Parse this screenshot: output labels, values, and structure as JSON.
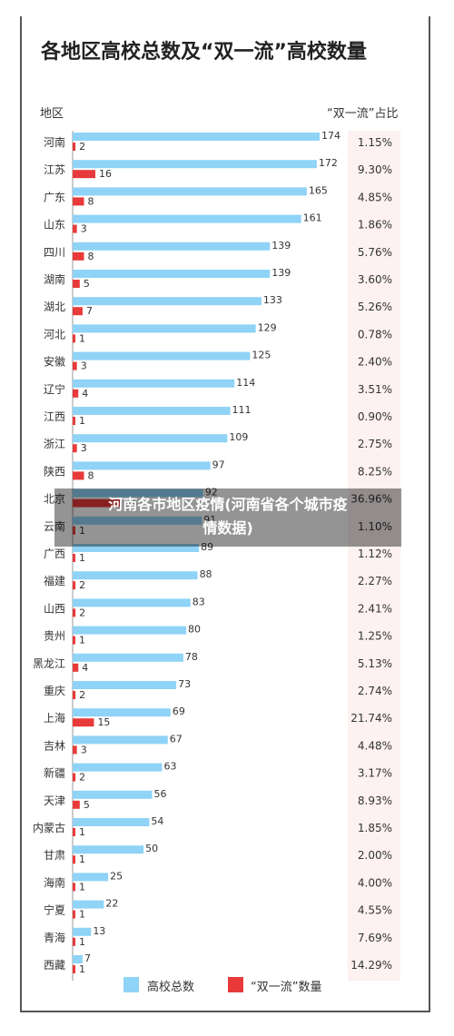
{
  "chart_data": {
    "type": "bar",
    "title": "各地区高校总数及“双一流”高校数量",
    "header_left": "地区",
    "header_right": "“双一流”占比",
    "categories": [
      "河南",
      "江苏",
      "广东",
      "山东",
      "四川",
      "湖南",
      "湖北",
      "河北",
      "安徽",
      "辽宁",
      "江西",
      "浙江",
      "陕西",
      "北京",
      "云南",
      "广西",
      "福建",
      "山西",
      "贵州",
      "黑龙江",
      "重庆",
      "上海",
      "吉林",
      "新疆",
      "天津",
      "内蒙古",
      "甘肃",
      "海南",
      "宁夏",
      "青海",
      "西藏"
    ],
    "series": [
      {
        "name": "高校总数",
        "color": "#8fd3f6",
        "values": [
          174,
          172,
          165,
          161,
          139,
          139,
          133,
          129,
          125,
          114,
          111,
          109,
          97,
          92,
          91,
          89,
          88,
          83,
          80,
          78,
          73,
          69,
          67,
          63,
          56,
          54,
          50,
          25,
          22,
          13,
          7
        ]
      },
      {
        "name": "“双一流”数量",
        "color": "#e83a3a",
        "values": [
          2,
          16,
          8,
          3,
          8,
          5,
          7,
          1,
          3,
          4,
          1,
          3,
          8,
          34,
          1,
          1,
          2,
          2,
          1,
          4,
          2,
          15,
          3,
          2,
          5,
          1,
          1,
          1,
          1,
          1,
          1
        ]
      }
    ],
    "ratios": [
      "1.15%",
      "9.30%",
      "4.85%",
      "1.86%",
      "5.76%",
      "3.60%",
      "5.26%",
      "0.78%",
      "2.40%",
      "3.51%",
      "0.90%",
      "2.75%",
      "8.25%",
      "36.96%",
      "1.10%",
      "1.12%",
      "2.27%",
      "2.41%",
      "1.25%",
      "5.13%",
      "2.74%",
      "21.74%",
      "4.48%",
      "3.17%",
      "8.93%",
      "1.85%",
      "2.00%",
      "4.00%",
      "4.55%",
      "7.69%",
      "14.29%"
    ],
    "xlim": [
      0,
      180
    ],
    "legend_position": "bottom"
  },
  "overlay": {
    "line1": "河南各市地区疫情(河南省各个城市疫",
    "line2": "情数据)"
  }
}
